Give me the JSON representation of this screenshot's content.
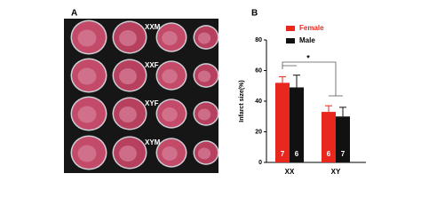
{
  "panel_a": {
    "label": "A",
    "rows": [
      "XXM",
      "XXF",
      "XYF",
      "XYM"
    ]
  },
  "chart_data": {
    "type": "bar",
    "panel_label": "B",
    "ylabel": "Infarct size(%)",
    "categories": [
      "XX",
      "XY"
    ],
    "series": [
      {
        "name": "Female",
        "color": "#e8281e",
        "values": [
          52,
          33
        ],
        "errors": [
          4,
          4
        ],
        "n": [
          "7",
          "6"
        ]
      },
      {
        "name": "Male",
        "color": "#111111",
        "values": [
          49,
          30
        ],
        "errors": [
          8,
          6
        ],
        "n": [
          "6",
          "7"
        ]
      }
    ],
    "ylim": [
      0,
      80
    ],
    "yticks": [
      0,
      20,
      40,
      60,
      80
    ],
    "annotation": "*"
  }
}
